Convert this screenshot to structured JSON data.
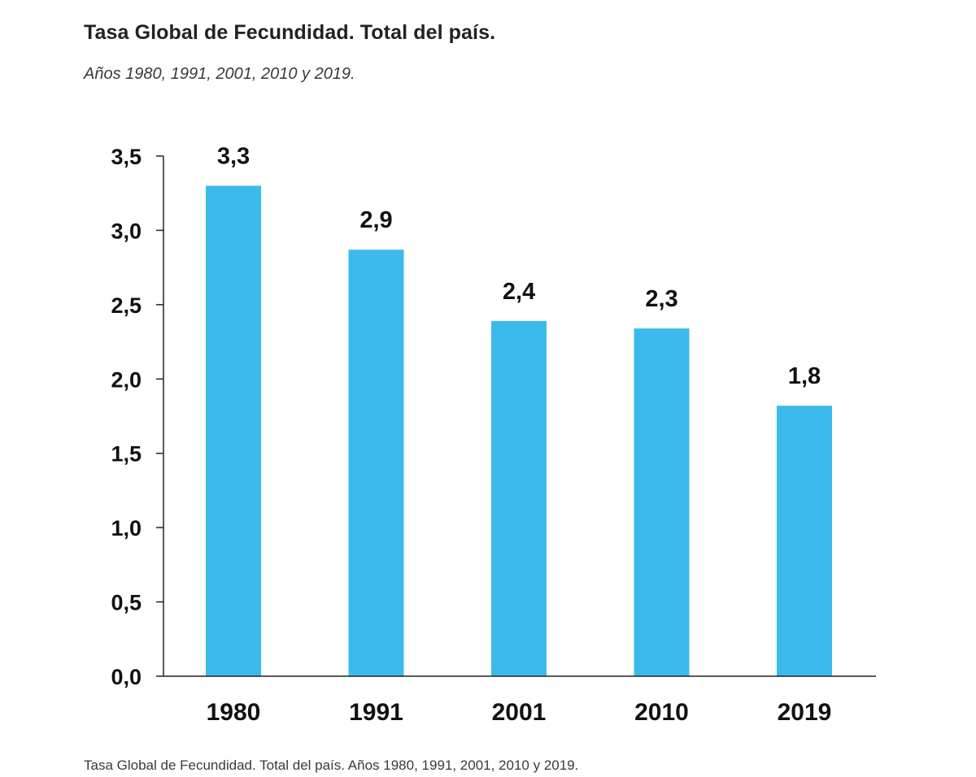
{
  "title": "Tasa Global de Fecundidad. Total del país.",
  "subtitle": "Años 1980, 1991, 2001, 2010 y 2019.",
  "caption": "Tasa Global de Fecundidad. Total del país. Años 1980, 1991, 2001, 2010 y 2019.",
  "colors": {
    "bar": "#3bbbec",
    "axis": "#222222"
  },
  "chart_data": {
    "type": "bar",
    "title": "Tasa Global de Fecundidad. Total del país.",
    "subtitle": "Años 1980, 1991, 2001, 2010 y 2019.",
    "categories": [
      "1980",
      "1991",
      "2001",
      "2010",
      "2019"
    ],
    "values": [
      3.3,
      2.87,
      2.39,
      2.34,
      1.82
    ],
    "data_labels": [
      "3,3",
      "2,9",
      "2,4",
      "2,3",
      "1,8"
    ],
    "xlabel": "",
    "ylabel": "",
    "ylim": [
      0,
      3.5
    ],
    "y_ticks": [
      0,
      0.5,
      1,
      1.5,
      2,
      2.5,
      3,
      3.5
    ],
    "y_tick_labels": [
      "0,0",
      "0,5",
      "1,0",
      "1,5",
      "2,0",
      "2,5",
      "3,0",
      "3,5"
    ],
    "grid": false,
    "legend": "none"
  }
}
